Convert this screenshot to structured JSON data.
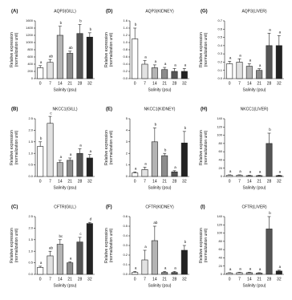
{
  "chart_data": [
    {
      "type": "bar",
      "panel": "(A)",
      "title": "AQP3(GILL)",
      "categories": [
        "0",
        "7",
        "14",
        "21",
        "28",
        "32"
      ],
      "values": [
        300,
        450,
        1200,
        700,
        1250,
        1150
      ],
      "errors": [
        60,
        80,
        250,
        60,
        250,
        120
      ],
      "letters": [
        "a",
        "ab",
        "b",
        "ab",
        "b",
        "b"
      ],
      "ylim": [
        0,
        1600
      ],
      "yticks": [
        0,
        200,
        400,
        600,
        800,
        1000,
        1200,
        1400,
        1600
      ],
      "xlabel": "Salinity (psu)",
      "ylabel": [
        "Relative expression",
        "(normalization unit)"
      ],
      "colors": [
        "#ffffff",
        "#e2e2e2",
        "#b4b4b4",
        "#8c8c8c",
        "#555555",
        "#222222"
      ]
    },
    {
      "type": "bar",
      "panel": "(D)",
      "title": "AQP3(KIDNEY)",
      "categories": [
        "0",
        "7",
        "14",
        "21",
        "28",
        "32"
      ],
      "values": [
        1.1,
        0.4,
        0.3,
        0.25,
        0.2,
        0.2
      ],
      "errors": [
        0.3,
        0.1,
        0.08,
        0.06,
        0.08,
        0.08
      ],
      "letters": [
        "b",
        "a",
        "a",
        "a",
        "a",
        "a"
      ],
      "ylim": [
        0,
        1.6
      ],
      "yticks": [
        {
          "value": 0,
          "label": "0.0"
        },
        0.2,
        0.4,
        0.6,
        0.8,
        {
          "value": 1,
          "label": "1.0"
        },
        1.2,
        1.4,
        1.6
      ],
      "xlabel": "Salinity (psu)",
      "ylabel": [
        "Relative expression",
        "(normalization unit)"
      ],
      "colors": [
        "#ffffff",
        "#e2e2e2",
        "#b4b4b4",
        "#8c8c8c",
        "#555555",
        "#222222"
      ]
    },
    {
      "type": "bar",
      "panel": "(G)",
      "title": "AQP3(LIVER)",
      "categories": [
        "0",
        "7",
        "14",
        "21",
        "28",
        "32"
      ],
      "values": [
        0.18,
        0.2,
        0.15,
        0.1,
        0.4,
        0.4
      ],
      "errors": [
        0.03,
        0.04,
        0.03,
        0.02,
        0.15,
        0.12
      ],
      "letters": [
        "a",
        "a",
        "a",
        "a",
        "a",
        "a"
      ],
      "ylim": [
        0,
        0.7
      ],
      "yticks": [
        {
          "value": 0,
          "label": "0.0"
        },
        0.1,
        0.2,
        0.3,
        0.4,
        0.5,
        0.6,
        0.7
      ],
      "xlabel": "Salinity (psu)",
      "ylabel": [
        "Relative expression",
        "(normalization unit)"
      ],
      "colors": [
        "#ffffff",
        "#e2e2e2",
        "#b4b4b4",
        "#8c8c8c",
        "#555555",
        "#222222"
      ]
    },
    {
      "type": "bar",
      "panel": "(B)",
      "title": "NKCC1(GILL)",
      "categories": [
        "0",
        "7",
        "14",
        "21",
        "28",
        "32"
      ],
      "values": [
        1.3,
        2.3,
        0.6,
        0.7,
        1.0,
        0.8
      ],
      "errors": [
        0.2,
        0.3,
        0.1,
        0.1,
        0.2,
        0.15
      ],
      "letters": [
        "b",
        "c",
        "a",
        "a",
        "a",
        "a"
      ],
      "ylim": [
        0,
        2.5
      ],
      "yticks": [
        {
          "value": 0,
          "label": "0.0"
        },
        0.5,
        {
          "value": 1,
          "label": "1.0"
        },
        1.5,
        {
          "value": 2,
          "label": "2.0"
        },
        2.5
      ],
      "xlabel": "Salinity (psu)",
      "ylabel": [
        "Relative expression",
        "(normalization unit)"
      ],
      "colors": [
        "#ffffff",
        "#e2e2e2",
        "#b4b4b4",
        "#8c8c8c",
        "#555555",
        "#222222"
      ]
    },
    {
      "type": "bar",
      "panel": "(E)",
      "title": "NKCC1(KIDNEY)",
      "categories": [
        "0",
        "7",
        "14",
        "21",
        "28",
        "32"
      ],
      "values": [
        0.3,
        0.6,
        3.0,
        1.8,
        0.4,
        2.9
      ],
      "errors": [
        0.1,
        0.2,
        1.2,
        0.2,
        0.1,
        1.0
      ],
      "letters": [
        "a",
        "a",
        "b",
        "b",
        "a",
        "b"
      ],
      "ylim": [
        0,
        5
      ],
      "yticks": [
        0,
        1,
        2,
        3,
        4,
        5
      ],
      "xlabel": "Salinity (psu)",
      "ylabel": [
        "Relative expression",
        "(normalization unit)"
      ],
      "colors": [
        "#ffffff",
        "#e2e2e2",
        "#b4b4b4",
        "#8c8c8c",
        "#555555",
        "#222222"
      ]
    },
    {
      "type": "bar",
      "panel": "(H)",
      "title": "NKCC1(LIVER)",
      "categories": [
        "0",
        "7",
        "14",
        "21",
        "28",
        "32"
      ],
      "values": [
        3,
        3,
        2,
        2,
        80,
        2
      ],
      "errors": [
        1,
        1,
        1,
        1,
        25,
        1
      ],
      "letters": [
        "a",
        "a",
        "a",
        "a",
        "b",
        "a"
      ],
      "ylim": [
        0,
        140
      ],
      "yticks": [
        0,
        20,
        40,
        60,
        80,
        100,
        120,
        140
      ],
      "xlabel": "Salinity (psu)",
      "ylabel": [
        "Relative expression",
        "(normalization unit)"
      ],
      "colors": [
        "#ffffff",
        "#e2e2e2",
        "#b4b4b4",
        "#8c8c8c",
        "#555555",
        "#222222"
      ]
    },
    {
      "type": "bar",
      "panel": "(C)",
      "title": "CFTR(GILL)",
      "categories": [
        "0",
        "7",
        "14",
        "21",
        "28",
        "32"
      ],
      "values": [
        0.3,
        0.8,
        1.3,
        0.5,
        1.4,
        2.2
      ],
      "errors": [
        0.05,
        0.2,
        0.2,
        0.05,
        0.2,
        0.05
      ],
      "letters": [
        "a",
        "ab",
        "bc",
        "a",
        "c",
        "d"
      ],
      "ylim": [
        0,
        2.5
      ],
      "yticks": [
        {
          "value": 0,
          "label": "0.0"
        },
        0.5,
        {
          "value": 1,
          "label": "1.0"
        },
        1.5,
        {
          "value": 2,
          "label": "2.0"
        },
        2.5
      ],
      "xlabel": "Salinity (psu)",
      "ylabel": [
        "Relative expression",
        "(normalization unit)"
      ],
      "colors": [
        "#ffffff",
        "#e2e2e2",
        "#b4b4b4",
        "#8c8c8c",
        "#555555",
        "#222222"
      ]
    },
    {
      "type": "bar",
      "panel": "(F)",
      "title": "CFTR(KIDNEY)",
      "categories": [
        "0",
        "7",
        "14",
        "21",
        "28",
        "32"
      ],
      "values": [
        0.02,
        0.15,
        0.35,
        0.02,
        0.02,
        0.25
      ],
      "errors": [
        0.01,
        0.1,
        0.15,
        0.01,
        0.01,
        0.05
      ],
      "letters": [
        "a",
        "a",
        "ab",
        "a",
        "a",
        "b"
      ],
      "ylim": [
        0,
        0.6
      ],
      "yticks": [
        {
          "value": 0,
          "label": "0.0"
        },
        0.1,
        0.2,
        0.3,
        0.4,
        0.5,
        0.6
      ],
      "xlabel": "Salinity (psu)",
      "ylabel": [
        "Relative expression",
        "(normalization unit)"
      ],
      "colors": [
        "#ffffff",
        "#e2e2e2",
        "#b4b4b4",
        "#8c8c8c",
        "#555555",
        "#222222"
      ]
    },
    {
      "type": "bar",
      "panel": "(I)",
      "title": "CFTR(LIVER)",
      "categories": [
        "0",
        "7",
        "14",
        "21",
        "28",
        "32"
      ],
      "values": [
        3,
        4,
        4,
        3,
        110,
        8
      ],
      "errors": [
        1,
        1,
        1,
        1,
        30,
        2
      ],
      "letters": [
        "a",
        "a",
        "a",
        "a",
        "b",
        "a"
      ],
      "ylim": [
        0,
        140
      ],
      "yticks": [
        0,
        20,
        40,
        60,
        80,
        100,
        120,
        140
      ],
      "xlabel": "Salinity (psu)",
      "ylabel": [
        "Relative expression",
        "(normalization unit)"
      ],
      "colors": [
        "#ffffff",
        "#e2e2e2",
        "#b4b4b4",
        "#8c8c8c",
        "#555555",
        "#222222"
      ]
    }
  ]
}
